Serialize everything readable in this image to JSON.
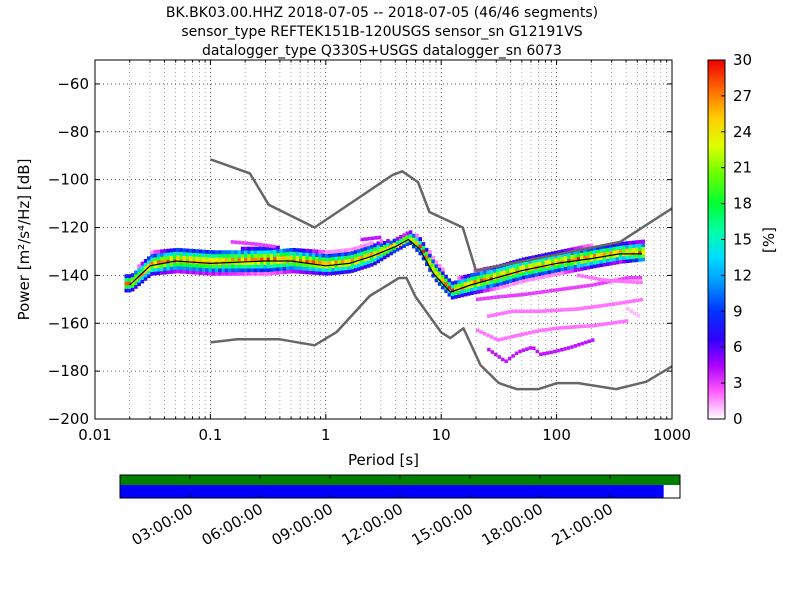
{
  "chart_data": {
    "type": "heatmap",
    "title_lines": [
      "BK.BK03.00.HHZ   2018-07-05 -- 2018-07-05  (46/46 segments)",
      "sensor_type REFTEK151B-120USGS sensor_sn G12191VS",
      "datalogger_type Q330S+USGS datalogger_sn 6073"
    ],
    "xlabel": "Period [s]",
    "ylabel": "Power [m²/s⁴/Hz] [dB]",
    "xscale": "log",
    "xlim": [
      0.01,
      1000
    ],
    "ylim": [
      -200,
      -50
    ],
    "xticks": [
      {
        "v": 0.01,
        "label": "0.01"
      },
      {
        "v": 0.1,
        "label": "0.1"
      },
      {
        "v": 1,
        "label": "1"
      },
      {
        "v": 10,
        "label": "10"
      },
      {
        "v": 100,
        "label": "100"
      },
      {
        "v": 1000,
        "label": "1000"
      }
    ],
    "yticks": [
      {
        "v": -60,
        "label": "−60"
      },
      {
        "v": -80,
        "label": "−80"
      },
      {
        "v": -100,
        "label": "−100"
      },
      {
        "v": -120,
        "label": "−120"
      },
      {
        "v": -140,
        "label": "−140"
      },
      {
        "v": -160,
        "label": "−160"
      },
      {
        "v": -180,
        "label": "−180"
      },
      {
        "v": -200,
        "label": "−200"
      }
    ],
    "grid": true,
    "colorbar": {
      "label": "[%]",
      "range": [
        0,
        30
      ],
      "ticks": [
        {
          "v": 0,
          "label": "0"
        },
        {
          "v": 3,
          "label": "3"
        },
        {
          "v": 6,
          "label": "6"
        },
        {
          "v": 9,
          "label": "9"
        },
        {
          "v": 12,
          "label": "12"
        },
        {
          "v": 15,
          "label": "15"
        },
        {
          "v": 18,
          "label": "18"
        },
        {
          "v": 21,
          "label": "21"
        },
        {
          "v": 24,
          "label": "24"
        },
        {
          "v": 27,
          "label": "27"
        },
        {
          "v": 30,
          "label": "30"
        }
      ]
    },
    "nhnm": [
      [
        0.1,
        -91.5
      ],
      [
        0.22,
        -97.4
      ],
      [
        0.32,
        -110.5
      ],
      [
        0.8,
        -120
      ],
      [
        3.8,
        -98
      ],
      [
        4.6,
        -96.5
      ],
      [
        6.3,
        -101
      ],
      [
        7.9,
        -113.5
      ],
      [
        15.4,
        -120
      ],
      [
        20,
        -138
      ],
      [
        354.8,
        -126
      ],
      [
        1000,
        -112
      ]
    ],
    "nlnm": [
      [
        0.1,
        -168
      ],
      [
        0.17,
        -166.7
      ],
      [
        0.4,
        -166.7
      ],
      [
        0.8,
        -169.2
      ],
      [
        1.24,
        -163.7
      ],
      [
        2.4,
        -148.6
      ],
      [
        4.3,
        -141.1
      ],
      [
        5,
        -141.1
      ],
      [
        6,
        -149
      ],
      [
        10,
        -163.8
      ],
      [
        12,
        -166.2
      ],
      [
        15.6,
        -162.1
      ],
      [
        21.9,
        -177.5
      ],
      [
        31.6,
        -185
      ],
      [
        45,
        -187.5
      ],
      [
        70,
        -187.5
      ],
      [
        101,
        -185
      ],
      [
        154,
        -185
      ],
      [
        328,
        -187.5
      ],
      [
        600,
        -184.4
      ],
      [
        1000,
        -178
      ]
    ],
    "mode_curve": [
      [
        0.02,
        -144
      ],
      [
        0.03,
        -136
      ],
      [
        0.05,
        -134
      ],
      [
        0.1,
        -135
      ],
      [
        0.3,
        -134
      ],
      [
        0.5,
        -134
      ],
      [
        1.0,
        -136
      ],
      [
        1.6,
        -135
      ],
      [
        2.5,
        -132
      ],
      [
        4.0,
        -128
      ],
      [
        5.2,
        -125
      ],
      [
        6.5,
        -129
      ],
      [
        8.5,
        -139
      ],
      [
        12,
        -147
      ],
      [
        18,
        -144
      ],
      [
        30,
        -141
      ],
      [
        50,
        -138
      ],
      [
        100,
        -135
      ],
      [
        200,
        -133
      ],
      [
        350,
        -131
      ],
      [
        550,
        -131
      ]
    ],
    "psd_lower": [
      [
        0.02,
        -147
      ],
      [
        0.03,
        -140
      ],
      [
        0.05,
        -139
      ],
      [
        0.1,
        -140
      ],
      [
        0.3,
        -140
      ],
      [
        0.5,
        -139
      ],
      [
        1.0,
        -140
      ],
      [
        1.6,
        -139
      ],
      [
        2.5,
        -136
      ],
      [
        4.0,
        -130
      ],
      [
        5.2,
        -127
      ],
      [
        6.5,
        -132
      ],
      [
        8.5,
        -142
      ],
      [
        12,
        -150
      ],
      [
        18,
        -148
      ],
      [
        30,
        -146
      ],
      [
        50,
        -143
      ],
      [
        100,
        -140
      ],
      [
        200,
        -137
      ],
      [
        350,
        -135
      ],
      [
        550,
        -134
      ]
    ],
    "psd_upper": [
      [
        0.02,
        -140
      ],
      [
        0.03,
        -131
      ],
      [
        0.05,
        -129
      ],
      [
        0.1,
        -130
      ],
      [
        0.3,
        -129
      ],
      [
        0.5,
        -129
      ],
      [
        1.0,
        -131
      ],
      [
        1.6,
        -130
      ],
      [
        2.5,
        -127
      ],
      [
        4.0,
        -125
      ],
      [
        5.2,
        -122
      ],
      [
        6.5,
        -125
      ],
      [
        8.5,
        -134
      ],
      [
        12,
        -143
      ],
      [
        18,
        -139
      ],
      [
        30,
        -137
      ],
      [
        50,
        -134
      ],
      [
        100,
        -131
      ],
      [
        200,
        -128
      ],
      [
        350,
        -127
      ],
      [
        550,
        -125
      ]
    ],
    "outliers": [
      {
        "pts": [
          [
            20,
            -150
          ],
          [
            30,
            -149
          ],
          [
            50,
            -148
          ],
          [
            100,
            -146
          ],
          [
            200,
            -144
          ],
          [
            400,
            -141
          ],
          [
            550,
            -141
          ]
        ],
        "pct": 3
      },
      {
        "pts": [
          [
            25,
            -157
          ],
          [
            40,
            -155
          ],
          [
            70,
            -155
          ],
          [
            150,
            -154
          ],
          [
            300,
            -152
          ],
          [
            550,
            -150
          ]
        ],
        "pct": 2
      },
      {
        "pts": [
          [
            20,
            -163
          ],
          [
            30,
            -167
          ],
          [
            45,
            -165
          ],
          [
            70,
            -163
          ],
          [
            100,
            -162
          ],
          [
            200,
            -161
          ],
          [
            400,
            -159
          ]
        ],
        "pct": 2
      },
      {
        "pts": [
          [
            25,
            -171
          ],
          [
            35,
            -176
          ],
          [
            45,
            -172
          ],
          [
            60,
            -170
          ],
          [
            70,
            -173
          ],
          [
            90,
            -172
          ],
          [
            130,
            -170
          ],
          [
            200,
            -167
          ]
        ],
        "pct": 4
      },
      {
        "pts": [
          [
            400,
            -154
          ],
          [
            500,
            -157
          ]
        ],
        "pct": 1
      },
      {
        "pts": [
          [
            150,
            -140
          ],
          [
            250,
            -142
          ],
          [
            550,
            -143
          ]
        ],
        "pct": 2
      },
      {
        "pts": [
          [
            2.0,
            -125
          ],
          [
            3.0,
            -124
          ]
        ],
        "pct": 4
      },
      {
        "pts": [
          [
            0.15,
            -126
          ],
          [
            0.25,
            -127
          ],
          [
            0.35,
            -128
          ]
        ],
        "pct": 3
      }
    ],
    "time_axis": {
      "ticks": [
        "03:00:00",
        "06:00:00",
        "09:00:00",
        "12:00:00",
        "15:00:00",
        "18:00:00",
        "21:00:00"
      ],
      "hours": [
        3,
        6,
        9,
        12,
        15,
        18,
        21
      ],
      "span_hours": 24,
      "data_coverage_end_hour": 23.3,
      "colors": {
        "gap_bar": "#008000",
        "data_bar": "#0000ff"
      }
    }
  }
}
